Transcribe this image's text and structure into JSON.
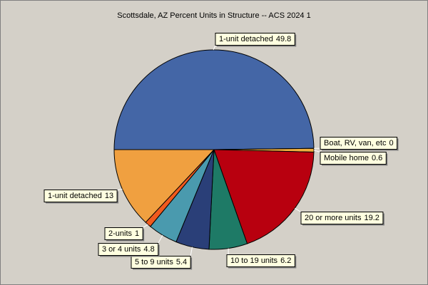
{
  "chart_data": {
    "type": "pie",
    "title": "Scottsdale, AZ Percent Units in Structure -- ACS 2024 1",
    "categories": [
      "1-unit detached",
      "Boat, RV, van, etc",
      "Mobile home",
      "20 or more units",
      "10 to 19 units",
      "5 to 9 units",
      "3 or 4 units",
      "2-units",
      "1-unit detached"
    ],
    "values": [
      49.8,
      0,
      0.6,
      19.2,
      6.2,
      5.4,
      4.8,
      1,
      13
    ],
    "colors": [
      "#4466a6",
      "#8a8a8a",
      "#f0b040",
      "#b8000f",
      "#1e7a66",
      "#2a3f78",
      "#4a9aae",
      "#f05a1e",
      "#f0a040"
    ]
  }
}
